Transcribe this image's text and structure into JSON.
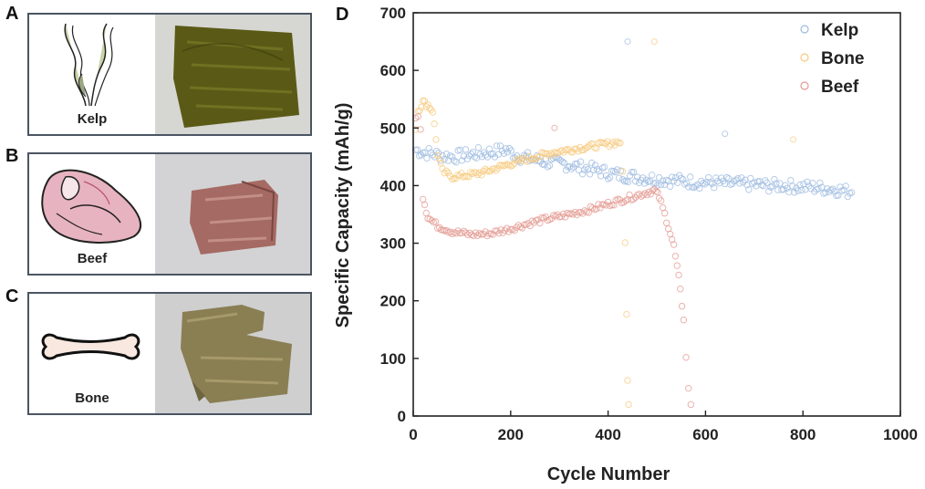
{
  "panels": [
    {
      "letter": "A",
      "caption": "Kelp"
    },
    {
      "letter": "B",
      "caption": "Beef"
    },
    {
      "letter": "C",
      "caption": "Bone"
    }
  ],
  "chart_data": {
    "panel_letter": "D",
    "type": "scatter",
    "xlabel": "Cycle Number",
    "ylabel": "Specific Capacity (mAh/g)",
    "xlim": [
      0,
      1000
    ],
    "ylim": [
      0,
      700
    ],
    "xticks": [
      0,
      200,
      400,
      600,
      800,
      1000
    ],
    "yticks": [
      0,
      100,
      200,
      300,
      400,
      500,
      600,
      700
    ],
    "legend_position": "top-right",
    "series": [
      {
        "name": "Kelp",
        "color": "#9dbbe0",
        "points": [
          [
            5,
            462
          ],
          [
            20,
            458
          ],
          [
            40,
            455
          ],
          [
            60,
            452
          ],
          [
            80,
            450
          ],
          [
            100,
            452
          ],
          [
            130,
            455
          ],
          [
            160,
            458
          ],
          [
            190,
            462
          ],
          [
            220,
            450
          ],
          [
            250,
            445
          ],
          [
            280,
            440
          ],
          [
            310,
            438
          ],
          [
            340,
            432
          ],
          [
            370,
            428
          ],
          [
            400,
            422
          ],
          [
            430,
            418
          ],
          [
            460,
            415
          ],
          [
            490,
            412
          ],
          [
            520,
            410
          ],
          [
            550,
            408
          ],
          [
            580,
            406
          ],
          [
            610,
            405
          ],
          [
            640,
            404
          ],
          [
            670,
            403
          ],
          [
            700,
            402
          ],
          [
            730,
            400
          ],
          [
            760,
            400
          ],
          [
            790,
            398
          ],
          [
            820,
            397
          ],
          [
            850,
            395
          ],
          [
            880,
            392
          ],
          [
            900,
            388
          ]
        ]
      },
      {
        "name": "Bone",
        "color": "#f7c97e",
        "points": [
          [
            5,
            500
          ],
          [
            10,
            530
          ],
          [
            20,
            545
          ],
          [
            30,
            540
          ],
          [
            40,
            530
          ],
          [
            50,
            455
          ],
          [
            60,
            425
          ],
          [
            80,
            415
          ],
          [
            110,
            418
          ],
          [
            140,
            422
          ],
          [
            170,
            430
          ],
          [
            200,
            438
          ],
          [
            230,
            445
          ],
          [
            260,
            452
          ],
          [
            290,
            458
          ],
          [
            320,
            462
          ],
          [
            350,
            466
          ],
          [
            380,
            470
          ],
          [
            410,
            474
          ],
          [
            425,
            476
          ],
          [
            430,
            420
          ],
          [
            435,
            300
          ],
          [
            438,
            180
          ],
          [
            440,
            60
          ],
          [
            442,
            20
          ]
        ]
      },
      {
        "name": "Beef",
        "color": "#e39a91",
        "points": [
          [
            5,
            515
          ],
          [
            10,
            525
          ],
          [
            15,
            500
          ],
          [
            20,
            380
          ],
          [
            30,
            345
          ],
          [
            50,
            330
          ],
          [
            80,
            320
          ],
          [
            120,
            315
          ],
          [
            160,
            317
          ],
          [
            200,
            325
          ],
          [
            240,
            335
          ],
          [
            280,
            343
          ],
          [
            320,
            350
          ],
          [
            360,
            358
          ],
          [
            400,
            368
          ],
          [
            440,
            378
          ],
          [
            480,
            388
          ],
          [
            495,
            392
          ],
          [
            505,
            380
          ],
          [
            520,
            340
          ],
          [
            535,
            295
          ],
          [
            545,
            240
          ],
          [
            555,
            170
          ],
          [
            560,
            100
          ],
          [
            565,
            50
          ],
          [
            570,
            20
          ]
        ]
      }
    ],
    "outliers": [
      [
        440,
        650
      ],
      [
        495,
        650
      ],
      [
        290,
        500
      ],
      [
        640,
        490
      ],
      [
        780,
        480
      ]
    ]
  }
}
